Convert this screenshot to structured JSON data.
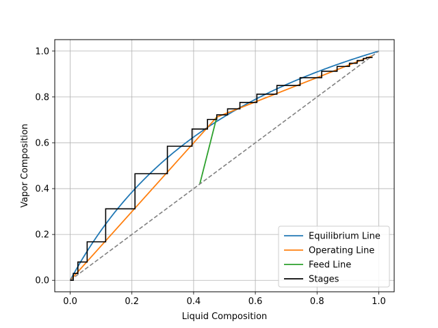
{
  "chart_data": {
    "type": "line",
    "title": "",
    "xlabel": "Liquid Composition",
    "ylabel": "Vapor Composition",
    "xlim": [
      -0.05,
      1.05
    ],
    "ylim": [
      -0.05,
      1.05
    ],
    "xticks": [
      0.0,
      0.2,
      0.4,
      0.6,
      0.8,
      1.0
    ],
    "yticks": [
      0.0,
      0.2,
      0.4,
      0.6,
      0.8,
      1.0
    ],
    "xtick_labels": [
      "0.0",
      "0.2",
      "0.4",
      "0.6",
      "0.8",
      "1.0"
    ],
    "ytick_labels": [
      "0.0",
      "0.2",
      "0.4",
      "0.6",
      "0.8",
      "1.0"
    ],
    "grid": true,
    "legend_position": "lower-right",
    "relative_volatility": 2.5,
    "series": [
      {
        "name": "Equilibrium Line",
        "color": "#1f77b4",
        "kind": "equilibrium",
        "x": [
          0.0,
          0.01,
          0.02,
          0.04,
          0.06,
          0.08,
          0.1,
          0.13,
          0.16,
          0.2,
          0.25,
          0.3,
          0.35,
          0.4,
          0.45,
          0.5,
          0.55,
          0.6,
          0.65,
          0.7,
          0.75,
          0.8,
          0.85,
          0.9,
          0.95,
          1.0
        ],
        "y": [
          0.0,
          0.025,
          0.049,
          0.094,
          0.138,
          0.179,
          0.217,
          0.272,
          0.323,
          0.385,
          0.455,
          0.517,
          0.574,
          0.625,
          0.672,
          0.714,
          0.753,
          0.789,
          0.823,
          0.854,
          0.882,
          0.909,
          0.934,
          0.957,
          0.979,
          1.0
        ]
      },
      {
        "name": "Operating Line",
        "color": "#ff7f0e",
        "kind": "line",
        "x": [
          0.0,
          0.475,
          0.98
        ],
        "y": [
          0.0,
          0.712,
          0.98
        ]
      },
      {
        "name": "Feed Line",
        "color": "#2ca02c",
        "kind": "line",
        "x": [
          0.42,
          0.475
        ],
        "y": [
          0.42,
          0.712
        ]
      },
      {
        "name": "Stages",
        "color": "#000000",
        "kind": "steps"
      },
      {
        "name": "",
        "color": "#808080",
        "kind": "diagonal",
        "x": [
          0.0,
          1.0
        ],
        "y": [
          0.0,
          1.0
        ]
      }
    ],
    "stage_points": [
      [
        0.0,
        0.0
      ],
      [
        0.01,
        0.0
      ],
      [
        0.01,
        0.03
      ],
      [
        0.025,
        0.03
      ],
      [
        0.025,
        0.08
      ],
      [
        0.055,
        0.08
      ],
      [
        0.055,
        0.168
      ],
      [
        0.115,
        0.168
      ],
      [
        0.115,
        0.312
      ],
      [
        0.21,
        0.312
      ],
      [
        0.21,
        0.465
      ],
      [
        0.315,
        0.465
      ],
      [
        0.315,
        0.585
      ],
      [
        0.395,
        0.585
      ],
      [
        0.395,
        0.66
      ],
      [
        0.445,
        0.66
      ],
      [
        0.445,
        0.702
      ],
      [
        0.475,
        0.702
      ],
      [
        0.475,
        0.722
      ],
      [
        0.51,
        0.722
      ],
      [
        0.51,
        0.748
      ],
      [
        0.55,
        0.748
      ],
      [
        0.55,
        0.776
      ],
      [
        0.605,
        0.776
      ],
      [
        0.605,
        0.812
      ],
      [
        0.67,
        0.812
      ],
      [
        0.67,
        0.85
      ],
      [
        0.745,
        0.85
      ],
      [
        0.745,
        0.884
      ],
      [
        0.815,
        0.884
      ],
      [
        0.815,
        0.912
      ],
      [
        0.865,
        0.912
      ],
      [
        0.865,
        0.933
      ],
      [
        0.905,
        0.933
      ],
      [
        0.905,
        0.947
      ],
      [
        0.93,
        0.947
      ],
      [
        0.93,
        0.959
      ],
      [
        0.95,
        0.959
      ],
      [
        0.95,
        0.968
      ],
      [
        0.96,
        0.968
      ],
      [
        0.96,
        0.972
      ],
      [
        0.98,
        0.972
      ]
    ]
  }
}
